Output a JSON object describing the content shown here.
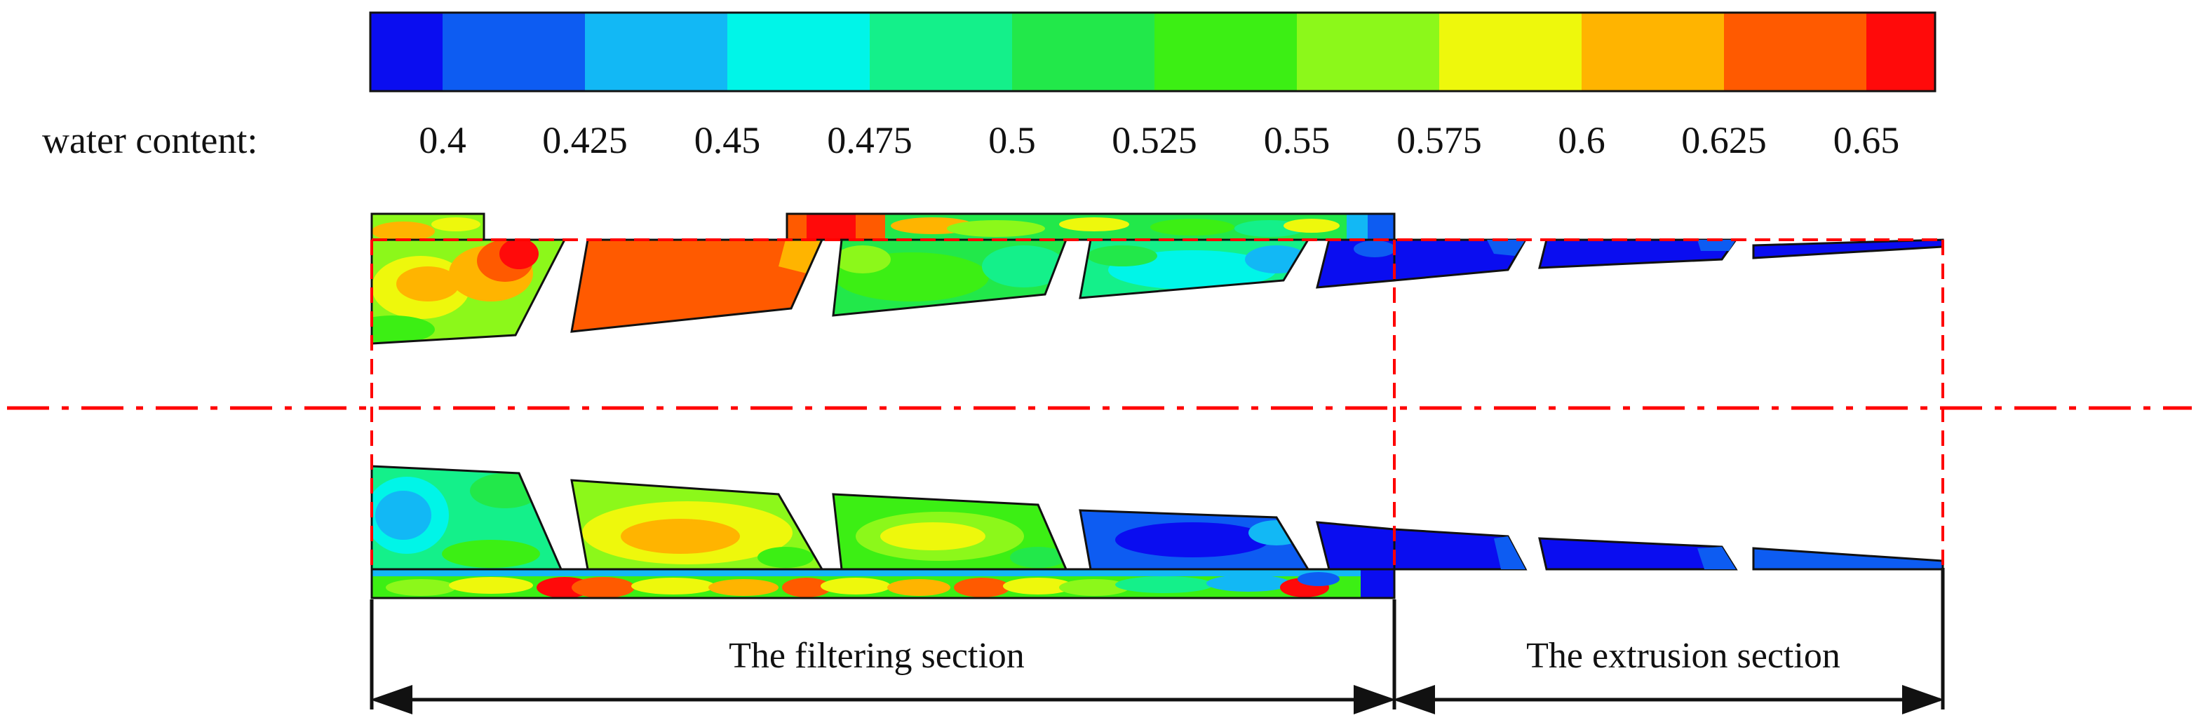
{
  "legend": {
    "title": "water content:",
    "ticks": [
      "0.4",
      "0.425",
      "0.45",
      "0.475",
      "0.5",
      "0.525",
      "0.55",
      "0.575",
      "0.6",
      "0.625",
      "0.65"
    ],
    "colors": [
      "#0a0df0",
      "#0d5cf2",
      "#12b8f5",
      "#00f5e8",
      "#14f08a",
      "#22e84a",
      "#3cef14",
      "#8cf81a",
      "#eef80c",
      "#ffb400",
      "#ff5a00",
      "#ff0a0a"
    ]
  },
  "sections": {
    "filtering": "The filtering section",
    "extrusion": "The extrusion section"
  },
  "colors": {
    "axis_line": "#ff0000",
    "outline": "#111111"
  }
}
